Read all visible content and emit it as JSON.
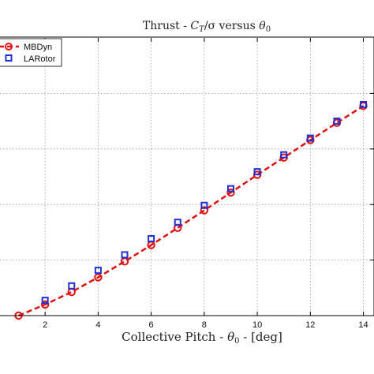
{
  "chart_data": {
    "type": "scatter",
    "title": "Thrust - C_T/σ versus θ_0",
    "title_parts": {
      "pre": "Thrust - ",
      "c": "C",
      "c_sub": "T",
      "mid": "/σ versus ",
      "theta": "θ",
      "theta_sub": "0"
    },
    "xlabel": "Collective Pitch - θ_0 - [deg]",
    "xlabel_parts": {
      "pre": "Collective Pitch - ",
      "theta": "θ",
      "theta_sub": "0",
      "post": " - [deg]"
    },
    "ylabel": "",
    "xlim": [
      0.3,
      14.4
    ],
    "ylim": [
      0.0,
      1.0
    ],
    "x_ticks": [
      2,
      4,
      6,
      8,
      10,
      12,
      14
    ],
    "x_tick_labels": [
      "2",
      "4",
      "6",
      "8",
      "10",
      "12",
      "14"
    ],
    "y_grid": [
      0.2,
      0.4,
      0.6,
      0.8
    ],
    "grid": true,
    "legend_position": "top-left",
    "series": [
      {
        "name": "MBDyn",
        "style": "dashed-line-circle-markers",
        "color": "#e01010",
        "x": [
          1,
          2,
          3,
          4,
          5,
          6,
          7,
          8,
          9,
          10,
          11,
          12,
          13,
          14
        ],
        "y": [
          0.0,
          0.04,
          0.085,
          0.138,
          0.195,
          0.254,
          0.316,
          0.379,
          0.443,
          0.507,
          0.569,
          0.632,
          0.694,
          0.755
        ]
      },
      {
        "name": "LARotor",
        "style": "square-markers",
        "color": "#2030d0",
        "x": [
          2,
          3,
          4,
          5,
          6,
          7,
          8,
          9,
          10,
          11,
          12,
          13,
          14
        ],
        "y": [
          0.055,
          0.107,
          0.163,
          0.219,
          0.277,
          0.336,
          0.397,
          0.457,
          0.518,
          0.579,
          0.639,
          0.7,
          0.76
        ]
      }
    ]
  }
}
